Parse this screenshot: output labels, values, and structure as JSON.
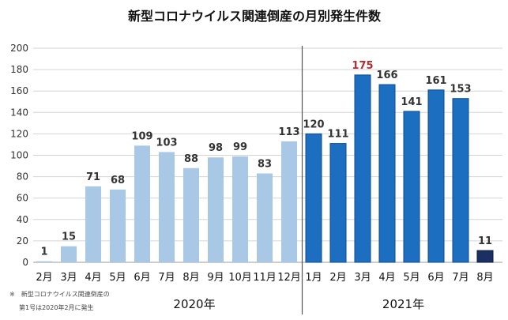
{
  "chart_data": {
    "type": "bar",
    "title": "新型コロナウイルス関連倒産の月別発生件数",
    "xlabel": "",
    "ylabel": "",
    "ylim": [
      0,
      200
    ],
    "yticks": [
      0,
      20,
      40,
      60,
      80,
      100,
      120,
      140,
      160,
      180,
      200
    ],
    "categories": [
      "2月",
      "3月",
      "4月",
      "5月",
      "6月",
      "7月",
      "8月",
      "9月",
      "10月",
      "11月",
      "12月",
      "1月",
      "2月",
      "3月",
      "4月",
      "5月",
      "6月",
      "7月",
      "8月"
    ],
    "values": [
      1,
      15,
      71,
      68,
      109,
      103,
      88,
      98,
      99,
      83,
      113,
      120,
      111,
      175,
      166,
      141,
      161,
      153,
      11
    ],
    "groups": [
      {
        "label": "2020年",
        "start": 0,
        "end": 10,
        "color": "#a9c8e6"
      },
      {
        "label": "2021年",
        "start": 11,
        "end": 18,
        "color": "#1c6fc0"
      }
    ],
    "highlight": {
      "index": 18,
      "color": "#1b2f63",
      "border": "#0b1a3f"
    },
    "max_label": {
      "index": 13,
      "color": "#c0282c"
    },
    "grid": true,
    "legend": "none",
    "separator_after_index": 10,
    "footnote": [
      "※　新型コロナウイルス関連倒産の",
      "第1号は2020年2月に発生"
    ]
  },
  "colors": {
    "grid": "#d4d4d4",
    "axis": "#9a9a9a",
    "separator": "#555555",
    "bar_2021_border": "#0e4b8e",
    "label_default": "#333333"
  }
}
